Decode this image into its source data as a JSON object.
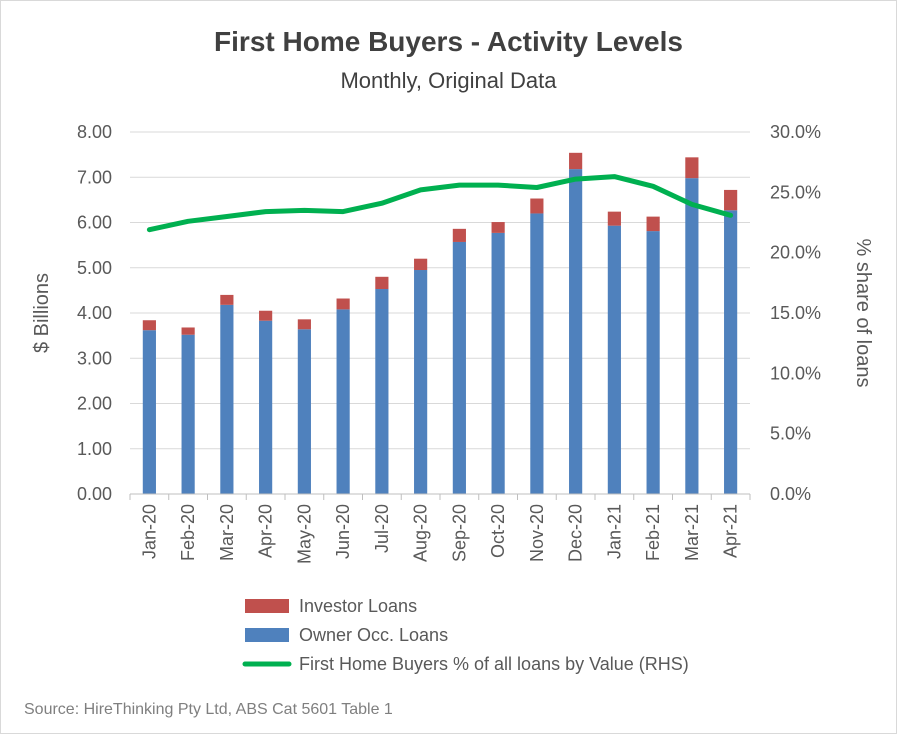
{
  "chart_data": {
    "type": "bar",
    "title": "First Home Buyers - Activity Levels",
    "subtitle": "Monthly, Original Data",
    "ylabel": "$ Billions",
    "y2label": "% share of loans",
    "ylim": [
      0,
      8
    ],
    "y2lim": [
      0,
      30
    ],
    "yticks": [
      "0.00",
      "1.00",
      "2.00",
      "3.00",
      "4.00",
      "5.00",
      "6.00",
      "7.00",
      "8.00"
    ],
    "y2ticks": [
      "0.0%",
      "5.0%",
      "10.0%",
      "15.0%",
      "20.0%",
      "25.0%",
      "30.0%"
    ],
    "categories": [
      "Jan-20",
      "Feb-20",
      "Mar-20",
      "Apr-20",
      "May-20",
      "Jun-20",
      "Jul-20",
      "Aug-20",
      "Sep-20",
      "Oct-20",
      "Nov-20",
      "Dec-20",
      "Jan-21",
      "Feb-21",
      "Mar-21",
      "Apr-21"
    ],
    "stacked": true,
    "grid": "horizontal",
    "legend_position": "bottom",
    "series": [
      {
        "name": "Owner Occ. Loans",
        "kind": "bar",
        "color": "#4f81bd",
        "values": [
          3.62,
          3.52,
          4.18,
          3.83,
          3.64,
          4.08,
          4.53,
          4.95,
          5.57,
          5.77,
          6.2,
          7.18,
          5.93,
          5.81,
          6.98,
          6.27
        ]
      },
      {
        "name": "Investor Loans",
        "kind": "bar",
        "color": "#c0504d",
        "values": [
          0.22,
          0.16,
          0.22,
          0.22,
          0.22,
          0.24,
          0.27,
          0.25,
          0.29,
          0.24,
          0.33,
          0.36,
          0.31,
          0.32,
          0.46,
          0.45
        ]
      },
      {
        "name": "First Home Buyers % of all loans by Value (RHS)",
        "kind": "line",
        "axis": "right",
        "color": "#00b050",
        "values": [
          21.9,
          22.6,
          23.0,
          23.4,
          23.5,
          23.4,
          24.1,
          25.2,
          25.6,
          25.6,
          25.4,
          26.1,
          26.3,
          25.5,
          24.0,
          23.1
        ]
      }
    ],
    "legend": [
      {
        "label": "Investor Loans",
        "color": "#c0504d",
        "kind": "bar"
      },
      {
        "label": "Owner Occ. Loans",
        "color": "#4f81bd",
        "kind": "bar"
      },
      {
        "label": "First Home Buyers % of all loans by Value (RHS)",
        "color": "#00b050",
        "kind": "line"
      }
    ],
    "source": "Source: HireThinking Pty Ltd, ABS Cat 5601 Table  1"
  }
}
